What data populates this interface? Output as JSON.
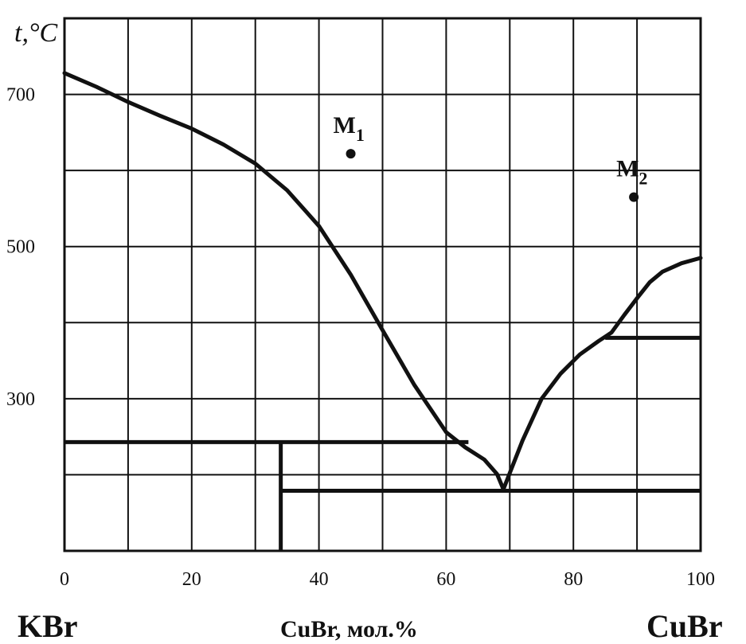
{
  "chart_data": {
    "type": "line",
    "title": "",
    "ylabel": "t,°C",
    "xlabel": "CuBr, мол.%",
    "left_component": "KBr",
    "right_component": "CuBr",
    "xlim": [
      0,
      100
    ],
    "ylim": [
      100,
      800
    ],
    "x_ticks": [
      0,
      10,
      20,
      30,
      40,
      50,
      60,
      70,
      80,
      90,
      100
    ],
    "x_tick_labels": [
      "0",
      "20",
      "40",
      "60",
      "80",
      "100"
    ],
    "x_tick_label_values": [
      0,
      20,
      40,
      60,
      80,
      100
    ],
    "y_ticks": [
      100,
      200,
      300,
      400,
      500,
      600,
      700,
      800
    ],
    "y_tick_labels": [
      "300",
      "500",
      "700"
    ],
    "y_tick_label_values": [
      300,
      500,
      700
    ],
    "grid": true,
    "series": [
      {
        "x": [
          0,
          5,
          10,
          15,
          20,
          25,
          30,
          35,
          40,
          45,
          50,
          55,
          60,
          63,
          66,
          68,
          69
        ],
        "y": [
          728,
          710,
          690,
          672,
          655,
          634,
          609,
          574,
          527,
          463,
          390,
          318,
          256,
          236,
          220,
          201,
          181
        ]
      },
      {
        "x": [
          69,
          72,
          75,
          78,
          81,
          84,
          86,
          88,
          90,
          92,
          94,
          97,
          100
        ],
        "y": [
          181,
          245,
          300,
          333,
          358,
          376,
          387,
          410,
          432,
          453,
          467,
          478,
          485
        ]
      }
    ],
    "horizontal_lines": [
      {
        "y": 243,
        "x_start": 0,
        "x_end": 63.5
      },
      {
        "y": 179,
        "x_start": 34,
        "x_end": 100
      },
      {
        "y": 380,
        "x_start": 85,
        "x_end": 100
      }
    ],
    "vertical_lines": [
      {
        "x": 34,
        "y_start": 100,
        "y_end": 243
      }
    ],
    "points": [
      {
        "label": "M",
        "sub": "1",
        "x": 45,
        "y": 622
      },
      {
        "label": "M",
        "sub": "2",
        "x": 89.5,
        "y": 565
      }
    ]
  }
}
